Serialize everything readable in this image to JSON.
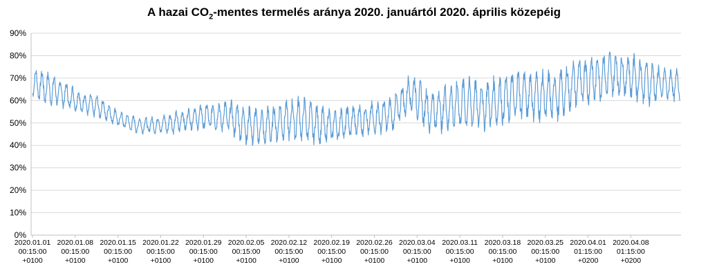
{
  "chart_data": {
    "type": "line",
    "title": {
      "pre": "A hazai CO",
      "sub": "2",
      "post": "-mentes termelés aránya 2020. januártól 2020. április közepéig"
    },
    "xlabel": "",
    "ylabel": "",
    "ylim": [
      0,
      90
    ],
    "yticks": [
      "0%",
      "10%",
      "20%",
      "30%",
      "40%",
      "50%",
      "60%",
      "70%",
      "80%",
      "90%"
    ],
    "x_tick_labels": [
      [
        "2020.01.01",
        "00:15:00",
        "+0100"
      ],
      [
        "2020.01.08",
        "00:15:00",
        "+0100"
      ],
      [
        "2020.01.15",
        "00:15:00",
        "+0100"
      ],
      [
        "2020.01.22",
        "00:15:00",
        "+0100"
      ],
      [
        "2020.01.29",
        "00:15:00",
        "+0100"
      ],
      [
        "2020.02.05",
        "00:15:00",
        "+0100"
      ],
      [
        "2020.02.12",
        "00:15:00",
        "+0100"
      ],
      [
        "2020.02.19",
        "00:15:00",
        "+0100"
      ],
      [
        "2020.02.26",
        "00:15:00",
        "+0100"
      ],
      [
        "2020.03.04",
        "00:15:00",
        "+0100"
      ],
      [
        "2020.03.11",
        "00:15:00",
        "+0100"
      ],
      [
        "2020.03.18",
        "00:15:00",
        "+0100"
      ],
      [
        "2020.03.25",
        "00:15:00",
        "+0100"
      ],
      [
        "2020.04.01",
        "01:15:00",
        "+0200"
      ],
      [
        "2020.04.08",
        "01:15:00",
        "+0200"
      ]
    ],
    "grid": true,
    "legend": "none",
    "line_color": "#5b9bd5",
    "series": [
      {
        "x": [
          "2020.01.01",
          "2020.01.03",
          "2020.01.06",
          "2020.01.09",
          "2020.01.12",
          "2020.01.15",
          "2020.01.18",
          "2020.01.21",
          "2020.01.24",
          "2020.01.27",
          "2020.01.30",
          "2020.02.02",
          "2020.02.05",
          "2020.02.08",
          "2020.02.11",
          "2020.02.14",
          "2020.02.17",
          "2020.02.20",
          "2020.02.23",
          "2020.02.26",
          "2020.02.29",
          "2020.03.03",
          "2020.03.06",
          "2020.03.09",
          "2020.03.12",
          "2020.03.15",
          "2020.03.18",
          "2020.03.21",
          "2020.03.24",
          "2020.03.27",
          "2020.03.30",
          "2020.04.02",
          "2020.04.05",
          "2020.04.08",
          "2020.04.11",
          "2020.04.14"
        ],
        "y": [
          68,
          66,
          63,
          59,
          57,
          52,
          49,
          49,
          50,
          52,
          53,
          53,
          49,
          48,
          51,
          52,
          49,
          49,
          51,
          52,
          54,
          64,
          55,
          57,
          59,
          58,
          60,
          63,
          62,
          62,
          68,
          70,
          72,
          71,
          68,
          67
        ],
        "spread": [
          5,
          6,
          5,
          4,
          4,
          3,
          3,
          3,
          4,
          4,
          5,
          6,
          7,
          7,
          7,
          8,
          7,
          6,
          6,
          6,
          6,
          7,
          8,
          9,
          9,
          9,
          9,
          9,
          9,
          9,
          9,
          9,
          8,
          8,
          8,
          6
        ]
      }
    ]
  }
}
